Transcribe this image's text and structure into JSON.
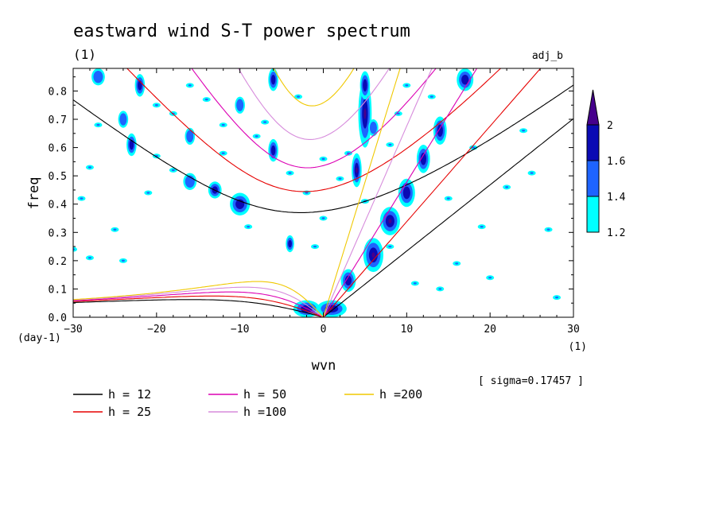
{
  "chart_data": {
    "type": "contour",
    "title": "eastward wind S-T power spectrum",
    "subtitle_left": "(1)",
    "subtitle_right": "adj_b",
    "xlabel": "wvn",
    "ylabel": "freq",
    "x_unit": "(1)",
    "y_unit": "(day-1)",
    "xlim": [
      -30,
      30
    ],
    "ylim": [
      0,
      0.88
    ],
    "x_ticks": [
      -30,
      -20,
      -10,
      0,
      10,
      20,
      30
    ],
    "y_ticks": [
      0.0,
      0.1,
      0.2,
      0.3,
      0.4,
      0.5,
      0.6,
      0.7,
      0.8
    ],
    "annotation": "[ sigma=0.17457 ]",
    "colorbar": {
      "levels": [
        1.2,
        1.4,
        1.6,
        2
      ],
      "colors": [
        "#00ffff",
        "#1e64ff",
        "#0a0ab4",
        "#46008c"
      ]
    },
    "dispersion_curves": [
      {
        "label": "h = 12",
        "color": "#000000"
      },
      {
        "label": "h = 25",
        "color": "#e60000"
      },
      {
        "label": "h = 50",
        "color": "#dc00b4"
      },
      {
        "label": "h =100",
        "color": "#d78cdc"
      },
      {
        "label": "h =200",
        "color": "#f0c800"
      }
    ],
    "blobs": [
      {
        "k": 5,
        "f": 0.72,
        "rk": 0.8,
        "rf": 0.12,
        "lvl": 3
      },
      {
        "k": 4,
        "f": 0.52,
        "rk": 0.6,
        "rf": 0.06,
        "lvl": 3
      },
      {
        "k": 5,
        "f": 0.82,
        "rk": 0.6,
        "rf": 0.05,
        "lvl": 2
      },
      {
        "k": 6,
        "f": 0.22,
        "rk": 1.2,
        "rf": 0.06,
        "lvl": 3
      },
      {
        "k": 8,
        "f": 0.34,
        "rk": 1.2,
        "rf": 0.05,
        "lvl": 3
      },
      {
        "k": 10,
        "f": 0.44,
        "rk": 1.0,
        "rf": 0.05,
        "lvl": 2
      },
      {
        "k": 3,
        "f": 0.13,
        "rk": 0.9,
        "rf": 0.04,
        "lvl": 2
      },
      {
        "k": 1,
        "f": 0.03,
        "rk": 1.8,
        "rf": 0.03,
        "lvl": 3
      },
      {
        "k": -2,
        "f": 0.03,
        "rk": 1.6,
        "rf": 0.03,
        "lvl": 3
      },
      {
        "k": 12,
        "f": 0.56,
        "rk": 0.8,
        "rf": 0.05,
        "lvl": 2
      },
      {
        "k": 14,
        "f": 0.66,
        "rk": 0.8,
        "rf": 0.05,
        "lvl": 2
      },
      {
        "k": 17,
        "f": 0.84,
        "rk": 1.0,
        "rf": 0.04,
        "lvl": 2
      },
      {
        "k": -4,
        "f": 0.26,
        "rk": 0.5,
        "rf": 0.03,
        "lvl": 2
      },
      {
        "k": -10,
        "f": 0.4,
        "rk": 1.2,
        "rf": 0.04,
        "lvl": 2
      },
      {
        "k": -13,
        "f": 0.45,
        "rk": 0.8,
        "rf": 0.03,
        "lvl": 2
      },
      {
        "k": -16,
        "f": 0.48,
        "rk": 0.8,
        "rf": 0.03,
        "lvl": 1
      },
      {
        "k": -6,
        "f": 0.59,
        "rk": 0.6,
        "rf": 0.04,
        "lvl": 2
      },
      {
        "k": -6,
        "f": 0.84,
        "rk": 0.6,
        "rf": 0.04,
        "lvl": 2
      },
      {
        "k": -10,
        "f": 0.75,
        "rk": 0.6,
        "rf": 0.03,
        "lvl": 1
      },
      {
        "k": -23,
        "f": 0.61,
        "rk": 0.6,
        "rf": 0.04,
        "lvl": 2
      },
      {
        "k": -24,
        "f": 0.7,
        "rk": 0.6,
        "rf": 0.03,
        "lvl": 1
      },
      {
        "k": -22,
        "f": 0.82,
        "rk": 0.6,
        "rf": 0.04,
        "lvl": 2
      },
      {
        "k": -27,
        "f": 0.85,
        "rk": 0.8,
        "rf": 0.03,
        "lvl": 1
      },
      {
        "k": -16,
        "f": 0.64,
        "rk": 0.6,
        "rf": 0.03,
        "lvl": 1
      },
      {
        "k": 6,
        "f": 0.67,
        "rk": 0.6,
        "rf": 0.03,
        "lvl": 1
      }
    ],
    "speckles": [
      [
        -27,
        0.68
      ],
      [
        -28,
        0.53
      ],
      [
        -25,
        0.31
      ],
      [
        -28,
        0.21
      ],
      [
        -24,
        0.2
      ],
      [
        -20,
        0.57
      ],
      [
        -18,
        0.72
      ],
      [
        -14,
        0.77
      ],
      [
        -12,
        0.68
      ],
      [
        -8,
        0.64
      ],
      [
        -20,
        0.75
      ],
      [
        -18,
        0.52
      ],
      [
        -21,
        0.44
      ],
      [
        -4,
        0.51
      ],
      [
        -2,
        0.44
      ],
      [
        0,
        0.35
      ],
      [
        2,
        0.49
      ],
      [
        3,
        0.58
      ],
      [
        8,
        0.61
      ],
      [
        9,
        0.72
      ],
      [
        10,
        0.82
      ],
      [
        13,
        0.78
      ],
      [
        8,
        0.25
      ],
      [
        11,
        0.12
      ],
      [
        14,
        0.1
      ],
      [
        16,
        0.19
      ],
      [
        19,
        0.32
      ],
      [
        22,
        0.46
      ],
      [
        25,
        0.51
      ],
      [
        27,
        0.31
      ],
      [
        28,
        0.07
      ],
      [
        5,
        0.41
      ],
      [
        -9,
        0.32
      ],
      [
        -16,
        0.82
      ],
      [
        -3,
        0.78
      ],
      [
        -30,
        0.24
      ],
      [
        -29,
        0.42
      ],
      [
        -12,
        0.58
      ],
      [
        -7,
        0.69
      ],
      [
        0,
        0.56
      ],
      [
        15,
        0.42
      ],
      [
        20,
        0.14
      ],
      [
        -1,
        0.25
      ],
      [
        18,
        0.6
      ],
      [
        24,
        0.66
      ]
    ]
  },
  "legend_layout": [
    "h = 12",
    "h = 25",
    "h = 50",
    "h =100",
    "h =200"
  ]
}
